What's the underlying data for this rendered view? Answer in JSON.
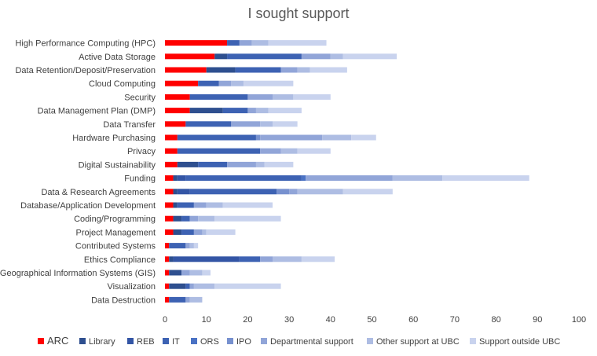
{
  "chart_data": {
    "type": "bar",
    "orientation": "horizontal",
    "stacked": true,
    "title": "I sought support",
    "xlim": [
      0,
      100
    ],
    "xticks": [
      0,
      10,
      20,
      30,
      40,
      50,
      60,
      70,
      80,
      90,
      100
    ],
    "grid": false,
    "legend_position": "bottom",
    "categories": [
      "High Performance Computing (HPC)",
      "Active Data Storage",
      "Data Retention/Deposit/Preservation",
      "Cloud Computing",
      "Security",
      "Data Management Plan (DMP)",
      "Data Transfer",
      "Hardware Purchasing",
      "Privacy",
      "Digital Sustainability",
      "Funding",
      "Data & Research Agreements",
      "Database/Application Development",
      "Coding/Programming",
      "Project Management",
      "Contributed Systems",
      "Ethics Compliance",
      "Geographical Information Systems (GIS)",
      "Visualization",
      "Data Destruction"
    ],
    "series": [
      {
        "name": "ARC",
        "color": "#ff0000",
        "values": [
          15,
          12,
          10,
          8,
          6,
          6,
          5,
          3,
          3,
          3,
          2,
          2,
          2,
          2,
          2,
          1,
          1,
          1,
          1,
          1
        ]
      },
      {
        "name": "Library",
        "color": "#2e4f8f",
        "values": [
          0,
          3,
          7,
          0,
          0,
          8,
          0,
          0,
          0,
          5,
          1,
          1,
          1,
          2,
          2,
          0,
          1,
          3,
          4,
          0
        ]
      },
      {
        "name": "REB",
        "color": "#3355a5",
        "values": [
          0,
          0,
          0,
          0,
          0,
          0,
          0,
          0,
          0,
          0,
          2,
          3,
          0,
          0,
          0,
          0,
          16,
          0,
          0,
          0
        ]
      },
      {
        "name": "IT",
        "color": "#3d62b3",
        "values": [
          3,
          18,
          11,
          5,
          14,
          6,
          11,
          19,
          20,
          7,
          28,
          21,
          4,
          2,
          3,
          4,
          5,
          0,
          1,
          4
        ]
      },
      {
        "name": "ORS",
        "color": "#4a72c4",
        "values": [
          0,
          0,
          0,
          0,
          0,
          0,
          0,
          0,
          0,
          0,
          1,
          0,
          0,
          0,
          0,
          0,
          0,
          0,
          0,
          0
        ]
      },
      {
        "name": "IPO",
        "color": "#7791cf",
        "values": [
          0,
          0,
          0,
          0,
          0,
          0,
          0,
          1,
          0,
          0,
          0,
          3,
          0,
          0,
          0,
          0,
          0,
          0,
          0,
          0
        ]
      },
      {
        "name": "Departmental support",
        "color": "#91a5d8",
        "values": [
          3,
          7,
          4,
          3,
          6,
          2,
          7,
          15,
          5,
          7,
          21,
          2,
          3,
          2,
          2,
          1,
          3,
          2,
          1,
          1
        ]
      },
      {
        "name": "Other support at UBC",
        "color": "#aebde3",
        "values": [
          4,
          3,
          3,
          3,
          5,
          3,
          3,
          7,
          4,
          2,
          12,
          11,
          4,
          4,
          1,
          1,
          7,
          3,
          5,
          3
        ]
      },
      {
        "name": "Support outside UBC",
        "color": "#c9d3ee",
        "values": [
          14,
          13,
          9,
          12,
          9,
          8,
          6,
          6,
          8,
          7,
          21,
          12,
          12,
          16,
          7,
          1,
          8,
          2,
          16,
          0
        ]
      }
    ]
  }
}
